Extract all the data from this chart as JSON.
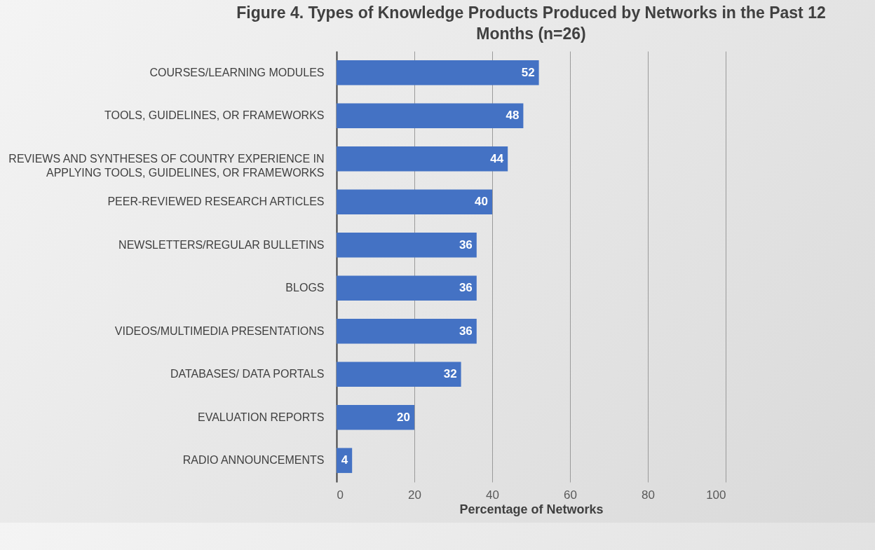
{
  "chart_data": {
    "type": "bar",
    "orientation": "horizontal",
    "title": "Figure 4. Types of Knowledge Products Produced by Networks in the Past 12 Months (n=26)",
    "xlabel": "Percentage of Networks",
    "categories": [
      "COURSES/LEARNING MODULES",
      "TOOLS, GUIDELINES, OR FRAMEWORKS",
      "REVIEWS AND SYNTHESES OF COUNTRY EXPERIENCE IN APPLYING TOOLS, GUIDELINES, OR FRAMEWORKS",
      "PEER-REVIEWED RESEARCH ARTICLES",
      "NEWSLETTERS/REGULAR BULLETINS",
      "BLOGS",
      "VIDEOS/MULTIMEDIA PRESENTATIONS",
      "DATABASES/ DATA PORTALS",
      "EVALUATION REPORTS",
      "RADIO ANNOUNCEMENTS"
    ],
    "values": [
      52,
      48,
      44,
      40,
      36,
      36,
      36,
      32,
      20,
      4
    ],
    "color": "#4472c4",
    "xlim": [
      0,
      100
    ],
    "xticks": [
      0,
      20,
      40,
      60,
      80,
      100
    ],
    "grid": "x",
    "data_labels": true
  }
}
